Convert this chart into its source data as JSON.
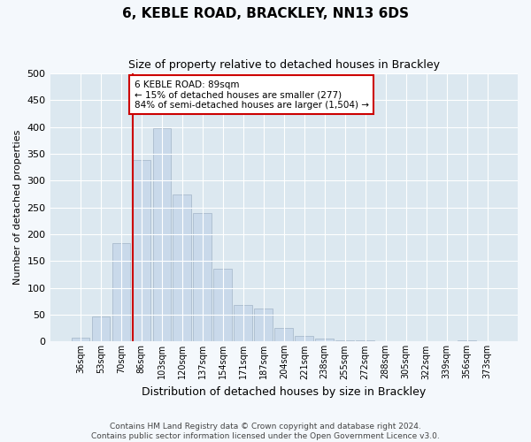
{
  "title": "6, KEBLE ROAD, BRACKLEY, NN13 6DS",
  "subtitle": "Size of property relative to detached houses in Brackley",
  "xlabel": "Distribution of detached houses by size in Brackley",
  "ylabel": "Number of detached properties",
  "categories": [
    "36sqm",
    "53sqm",
    "70sqm",
    "86sqm",
    "103sqm",
    "120sqm",
    "137sqm",
    "154sqm",
    "171sqm",
    "187sqm",
    "204sqm",
    "221sqm",
    "238sqm",
    "255sqm",
    "272sqm",
    "288sqm",
    "305sqm",
    "322sqm",
    "339sqm",
    "356sqm",
    "373sqm"
  ],
  "values": [
    8,
    46,
    183,
    338,
    398,
    275,
    240,
    136,
    68,
    62,
    25,
    10,
    5,
    3,
    2,
    1,
    0,
    0,
    0,
    3,
    0
  ],
  "bar_color": "#c9d9ea",
  "bar_edge_color": "#aabcce",
  "bg_color": "#dce8f0",
  "grid_color": "#ffffff",
  "fig_bg_color": "#f4f8fc",
  "vline_color": "#cc0000",
  "vline_x_index": 3,
  "annotation_text": "6 KEBLE ROAD: 89sqm\n← 15% of detached houses are smaller (277)\n84% of semi-detached houses are larger (1,504) →",
  "annotation_box_facecolor": "#ffffff",
  "annotation_box_edgecolor": "#cc0000",
  "ylim": [
    0,
    500
  ],
  "yticks": [
    0,
    50,
    100,
    150,
    200,
    250,
    300,
    350,
    400,
    450,
    500
  ],
  "footnote1": "Contains HM Land Registry data © Crown copyright and database right 2024.",
  "footnote2": "Contains public sector information licensed under the Open Government Licence v3.0."
}
